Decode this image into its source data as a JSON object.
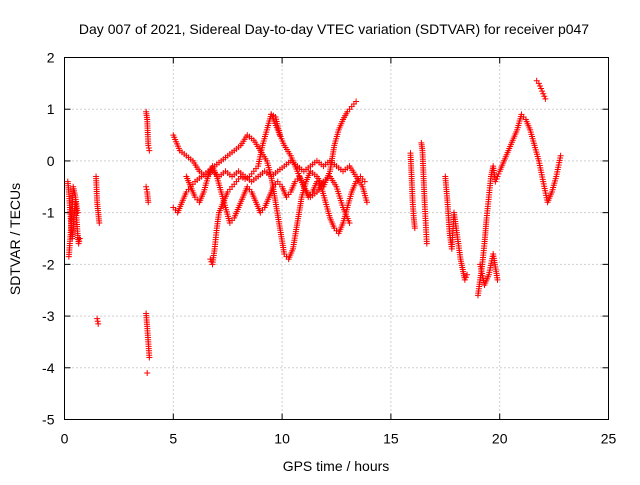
{
  "chart_data": {
    "type": "scatter",
    "title": "Day 007 of 2021, Sidereal Day-to-day VTEC variation (SDTVAR) for receiver p047",
    "xlabel": "GPS time / hours",
    "ylabel": "SDTVAR / TECUs",
    "xlim": [
      0,
      25
    ],
    "ylim": [
      -5,
      2
    ],
    "xticks": [
      0,
      5,
      10,
      15,
      20,
      25
    ],
    "yticks": [
      -5,
      -4,
      -3,
      -2,
      -1,
      0,
      1,
      2
    ],
    "grid": true,
    "marker": "+",
    "color": "#ff0000",
    "series": [
      {
        "name": "SDTVAR",
        "segments": [
          {
            "x": [
              0.15,
              0.2,
              0.25,
              0.3,
              0.35,
              0.4,
              0.45,
              0.5,
              0.55,
              0.6,
              0.65,
              0.7
            ],
            "y": [
              -0.4,
              -0.6,
              -0.9,
              -1.2,
              -1.5,
              -1.3,
              -1.0,
              -0.8,
              -1.1,
              -1.4,
              -1.6,
              -1.5
            ]
          },
          {
            "x": [
              0.2,
              0.3,
              0.4,
              0.5,
              0.6
            ],
            "y": [
              -1.85,
              -1.3,
              -0.5,
              -0.7,
              -1.0
            ]
          },
          {
            "x": [
              1.45,
              1.5,
              1.55,
              1.6
            ],
            "y": [
              -0.3,
              -0.8,
              -1.0,
              -1.2
            ]
          },
          {
            "x": [
              1.5,
              1.55
            ],
            "y": [
              -3.05,
              -3.15
            ]
          },
          {
            "x": [
              3.75,
              3.8,
              3.85,
              3.9
            ],
            "y": [
              0.95,
              0.8,
              0.3,
              0.2
            ]
          },
          {
            "x": [
              3.75,
              3.8,
              3.85
            ],
            "y": [
              -0.5,
              -0.6,
              -0.8
            ]
          },
          {
            "x": [
              3.75,
              3.8,
              3.85,
              3.9
            ],
            "y": [
              -2.95,
              -3.2,
              -3.5,
              -3.8
            ]
          },
          {
            "x": [
              3.8
            ],
            "y": [
              -4.1
            ]
          },
          {
            "x": [
              5.0,
              5.3,
              5.6,
              5.9,
              6.2,
              6.5,
              6.8,
              7.1,
              7.4,
              7.7,
              8.0,
              8.3,
              8.6,
              8.9,
              9.2,
              9.5,
              9.8,
              10.1,
              10.4,
              10.7,
              11.0,
              11.3,
              11.6,
              11.9,
              12.2,
              12.5,
              12.8,
              13.1,
              13.4,
              13.7,
              13.9
            ],
            "y": [
              0.5,
              0.2,
              0.1,
              0.0,
              -0.2,
              -0.3,
              -0.2,
              -0.3,
              -0.2,
              -0.3,
              -0.2,
              -0.3,
              -0.4,
              -0.3,
              -0.2,
              -0.3,
              -0.2,
              -0.1,
              0.0,
              -0.1,
              -0.2,
              -0.1,
              0.0,
              -0.1,
              0.0,
              -0.1,
              -0.2,
              -0.1,
              -0.3,
              -0.5,
              -0.8
            ]
          },
          {
            "x": [
              5.0,
              5.2,
              5.4,
              5.6,
              5.8,
              6.0,
              6.3,
              6.6,
              6.9,
              7.2,
              7.5,
              7.8,
              8.1,
              8.4,
              8.7,
              9.0,
              9.3,
              9.5,
              9.7,
              9.9,
              10.1,
              10.3,
              10.5,
              10.7,
              10.9,
              11.1,
              11.3,
              11.6,
              11.9,
              12.2,
              12.4,
              12.6,
              12.8,
              13.0,
              13.2,
              13.4
            ],
            "y": [
              -0.9,
              -1.0,
              -0.8,
              -0.6,
              -0.5,
              -0.4,
              -0.3,
              -0.2,
              -0.1,
              0.0,
              0.1,
              0.2,
              0.3,
              0.5,
              0.4,
              0.2,
              0.0,
              -0.3,
              -0.8,
              -1.3,
              -1.8,
              -1.9,
              -1.7,
              -1.2,
              -0.7,
              -0.4,
              -0.2,
              -0.3,
              -0.5,
              -0.2,
              0.3,
              0.6,
              0.8,
              0.95,
              1.05,
              1.15
            ]
          },
          {
            "x": [
              5.6,
              5.8,
              6.0,
              6.2,
              6.4,
              6.6,
              6.8,
              7.0,
              7.2,
              7.4,
              7.6,
              7.8,
              8.0,
              8.2,
              8.4,
              8.6,
              8.8,
              9.0,
              9.2,
              9.4,
              9.6,
              9.8,
              10.0,
              10.2,
              10.4,
              10.6,
              10.8,
              11.0,
              11.2,
              11.4,
              11.6,
              11.8,
              12.0,
              12.2,
              12.4,
              12.6,
              12.8,
              13.0,
              13.2,
              13.4,
              13.6,
              13.8
            ],
            "y": [
              -0.3,
              -0.5,
              -0.7,
              -0.8,
              -0.6,
              -0.3,
              -0.1,
              -0.3,
              -0.6,
              -0.9,
              -1.2,
              -1.1,
              -0.9,
              -0.7,
              -0.5,
              -0.6,
              -0.8,
              -1.0,
              -0.9,
              -0.7,
              -0.5,
              -0.4,
              -0.5,
              -0.7,
              -0.6,
              -0.4,
              -0.3,
              -0.5,
              -0.7,
              -0.6,
              -0.4,
              -0.5,
              -0.8,
              -1.1,
              -1.3,
              -1.4,
              -1.2,
              -0.9,
              -0.6,
              -0.4,
              -0.3,
              -0.4
            ]
          },
          {
            "x": [
              6.7,
              6.8,
              6.9,
              7.0,
              7.1,
              7.3,
              7.5,
              7.7,
              7.9,
              8.1,
              8.3,
              8.5,
              8.7,
              8.9,
              9.1,
              9.3,
              9.5,
              9.7,
              9.9
            ],
            "y": [
              -1.9,
              -2.0,
              -1.7,
              -1.3,
              -1.0,
              -0.8,
              -0.6,
              -0.5,
              -0.4,
              -0.3,
              -0.35,
              -0.3,
              -0.2,
              -0.1,
              0.3,
              0.6,
              0.9,
              0.85,
              0.5
            ]
          },
          {
            "x": [
              9.5,
              9.8,
              10.1,
              10.4,
              10.7,
              11.0,
              11.3,
              11.6,
              11.9,
              12.2,
              12.5,
              12.8,
              13.1
            ],
            "y": [
              0.9,
              0.6,
              0.3,
              0.1,
              -0.2,
              -0.5,
              -0.7,
              -0.6,
              -0.4,
              -0.3,
              -0.5,
              -0.9,
              -1.2
            ]
          },
          {
            "x": [
              15.9,
              15.95,
              16.0,
              16.05,
              16.1
            ],
            "y": [
              0.15,
              -0.3,
              -0.8,
              -1.1,
              -1.3
            ]
          },
          {
            "x": [
              16.4,
              16.45,
              16.5,
              16.55,
              16.6,
              16.65
            ],
            "y": [
              0.35,
              0.2,
              -0.3,
              -0.8,
              -1.2,
              -1.6
            ]
          },
          {
            "x": [
              17.5,
              17.6,
              17.7,
              17.8,
              17.9,
              18.0,
              18.1,
              18.2,
              18.3,
              18.4,
              18.5
            ],
            "y": [
              -0.3,
              -0.8,
              -1.4,
              -1.7,
              -1.0,
              -1.3,
              -1.6,
              -1.9,
              -2.1,
              -2.3,
              -2.2
            ]
          },
          {
            "x": [
              19.0,
              19.1,
              19.2,
              19.3,
              19.4,
              19.5,
              19.6,
              19.7,
              19.8,
              19.9,
              20.0,
              20.2,
              20.4,
              20.6,
              20.8,
              21.0,
              21.2,
              21.4,
              21.6,
              21.8,
              22.0,
              22.2,
              22.4,
              22.6,
              22.8
            ],
            "y": [
              -2.6,
              -2.3,
              -2.0,
              -1.6,
              -1.1,
              -0.7,
              -0.3,
              -0.1,
              -0.4,
              -0.3,
              -0.2,
              0.0,
              0.2,
              0.4,
              0.6,
              0.9,
              0.8,
              0.6,
              0.3,
              0.0,
              -0.4,
              -0.8,
              -0.6,
              -0.3,
              0.1
            ]
          },
          {
            "x": [
              19.1,
              19.3,
              19.5,
              19.7,
              19.9
            ],
            "y": [
              -2.0,
              -2.4,
              -2.2,
              -1.8,
              -2.3
            ]
          },
          {
            "x": [
              21.7,
              21.8,
              21.9,
              22.0,
              22.1
            ],
            "y": [
              1.55,
              1.5,
              1.4,
              1.3,
              1.2
            ]
          }
        ]
      }
    ]
  }
}
